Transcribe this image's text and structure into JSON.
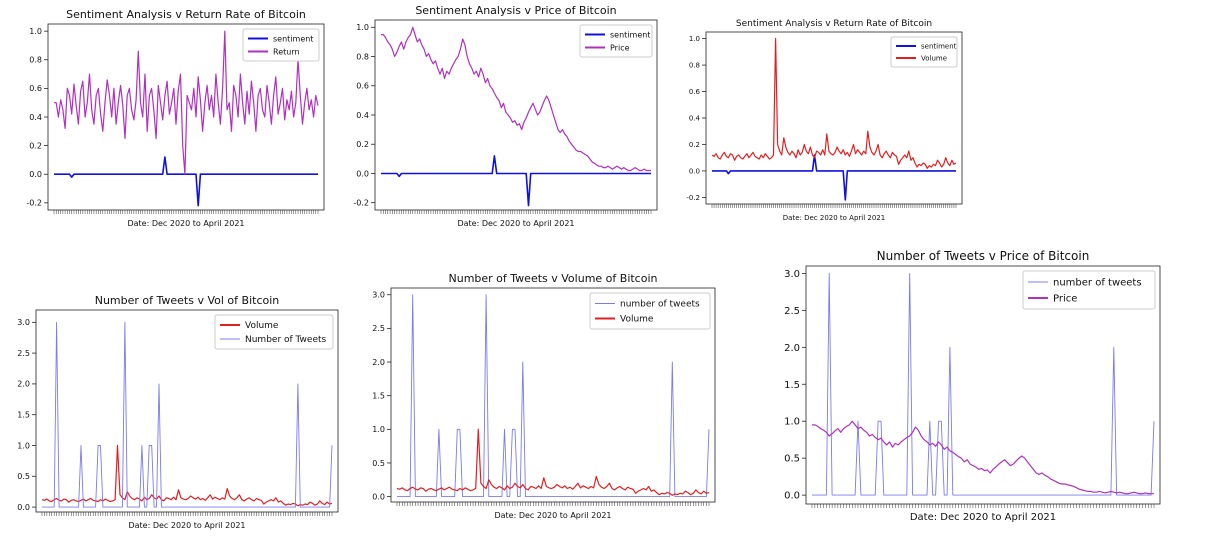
{
  "chart_data": [
    {
      "type": "line",
      "title": "Sentiment Analysis v Return Rate of Bitcoin",
      "xlabel": "Date: Dec 2020 to April 2021",
      "ylabel": "",
      "ylim": [
        -0.25,
        1.05
      ],
      "yticks": [
        "-0.2",
        "0.0",
        "0.2",
        "0.4",
        "0.6",
        "0.8",
        "1.0"
      ],
      "yvalues": [
        -0.2,
        0.0,
        0.2,
        0.4,
        0.6,
        0.8,
        1.0
      ],
      "legend": "top-right",
      "grid": false,
      "n_points": 120,
      "series": [
        {
          "name": "sentiment",
          "color": "#1010e0",
          "kind": "sentiment"
        },
        {
          "name": "Return",
          "color": "#b030c0",
          "kind": "return"
        }
      ]
    },
    {
      "type": "line",
      "title": "Sentiment Analysis v Price of Bitcoin",
      "xlabel": "Date: Dec 2020 to April 2021",
      "ylabel": "",
      "ylim": [
        -0.25,
        1.05
      ],
      "yticks": [
        "-0.2",
        "0.0",
        "0.2",
        "0.4",
        "0.6",
        "0.8",
        "1.0"
      ],
      "yvalues": [
        -0.2,
        0.0,
        0.2,
        0.4,
        0.6,
        0.8,
        1.0
      ],
      "legend": "top-right",
      "grid": false,
      "n_points": 120,
      "series": [
        {
          "name": "sentiment",
          "color": "#1010e0",
          "kind": "sentiment"
        },
        {
          "name": "Price",
          "color": "#b030c0",
          "kind": "price"
        }
      ]
    },
    {
      "type": "line",
      "title": "Sentiment Analysis v Return Rate of Bitcoin",
      "xlabel": "Date: Dec 2020 to April 2021",
      "ylabel": "",
      "ylim": [
        -0.25,
        1.05
      ],
      "yticks": [
        "-0.2",
        "0.0",
        "0.2",
        "0.4",
        "0.6",
        "0.8",
        "1.0"
      ],
      "yvalues": [
        -0.2,
        0.0,
        0.2,
        0.4,
        0.6,
        0.8,
        1.0
      ],
      "legend": "top-right",
      "grid": false,
      "n_points": 120,
      "series": [
        {
          "name": "sentiment",
          "color": "#1010e0",
          "kind": "sentiment"
        },
        {
          "name": "Volume",
          "color": "#e02020",
          "kind": "volume"
        }
      ]
    },
    {
      "type": "line",
      "title": "Number of Tweets v Vol of Bitcoin",
      "xlabel": "Date: Dec 2020 to April 2021",
      "ylabel": "",
      "ylim": [
        -0.08,
        3.2
      ],
      "yticks": [
        "0.0",
        "0.5",
        "1.0",
        "1.5",
        "2.0",
        "2.5",
        "3.0"
      ],
      "yvalues": [
        0.0,
        0.5,
        1.0,
        1.5,
        2.0,
        2.5,
        3.0
      ],
      "legend": "top-right",
      "grid": false,
      "n_points": 120,
      "series": [
        {
          "name": "Volume",
          "color": "#e02020",
          "kind": "volume"
        },
        {
          "name": "Number of Tweets",
          "color": "#7b7bf0",
          "kind": "tweets"
        }
      ]
    },
    {
      "type": "line",
      "title": "Number of Tweets v Volume of Bitcoin",
      "xlabel": "Date: Dec 2020 to April 2021",
      "ylabel": "",
      "ylim": [
        -0.08,
        3.1
      ],
      "yticks": [
        "0.0",
        "0.5",
        "1.0",
        "1.5",
        "2.0",
        "2.5",
        "3.0"
      ],
      "yvalues": [
        0.0,
        0.5,
        1.0,
        1.5,
        2.0,
        2.5,
        3.0
      ],
      "legend": "top-right",
      "grid": false,
      "n_points": 120,
      "series": [
        {
          "name": "number of tweets",
          "color": "#7b7bf0",
          "kind": "tweets"
        },
        {
          "name": "Volume",
          "color": "#e02020",
          "kind": "volume"
        }
      ]
    },
    {
      "type": "line",
      "title": "Number of Tweets v Price of Bitcoin",
      "xlabel": "Date: Dec 2020 to April 2021",
      "ylabel": "",
      "ylim": [
        -0.12,
        3.1
      ],
      "yticks": [
        "0.0",
        "0.5",
        "1.0",
        "1.5",
        "2.0",
        "2.5",
        "3.0"
      ],
      "yvalues": [
        0.0,
        0.5,
        1.0,
        1.5,
        2.0,
        2.5,
        3.0
      ],
      "legend": "top-right",
      "grid": false,
      "n_points": 120,
      "series": [
        {
          "name": "number of tweets",
          "color": "#7b7bf0",
          "kind": "tweets"
        },
        {
          "name": "Price",
          "color": "#b030c0",
          "kind": "price"
        }
      ]
    }
  ],
  "series_data": {
    "sentiment": [
      0,
      0,
      0,
      0,
      0,
      0,
      0,
      0,
      -0.02,
      0,
      0,
      0,
      0,
      0,
      0,
      0,
      0,
      0,
      0,
      0,
      0,
      0,
      0,
      0,
      0,
      0,
      0,
      0,
      0,
      0,
      0,
      0,
      0,
      0,
      0,
      0,
      0,
      0,
      0,
      0,
      0,
      0,
      0,
      0,
      0,
      0,
      0,
      0,
      0,
      0,
      0.12,
      0,
      0,
      0,
      0,
      0,
      0,
      0,
      0,
      0,
      0,
      0,
      0,
      0,
      0,
      -0.22,
      0,
      0,
      0,
      0,
      0,
      0,
      0,
      0,
      0,
      0,
      0,
      0,
      0,
      0,
      0,
      0,
      0,
      0,
      0,
      0,
      0,
      0,
      0,
      0,
      0,
      0,
      0,
      0,
      0,
      0,
      0,
      0,
      0,
      0,
      0,
      0,
      0,
      0,
      0,
      0,
      0,
      0,
      0,
      0,
      0,
      0,
      0,
      0,
      0,
      0,
      0,
      0,
      0,
      0
    ],
    "return": [
      0.5,
      0.5,
      0.4,
      0.52,
      0.45,
      0.32,
      0.6,
      0.55,
      0.42,
      0.63,
      0.48,
      0.35,
      0.58,
      0.65,
      0.4,
      0.5,
      0.7,
      0.45,
      0.35,
      0.55,
      0.6,
      0.42,
      0.3,
      0.5,
      0.66,
      0.55,
      0.4,
      0.6,
      0.35,
      0.5,
      0.62,
      0.48,
      0.25,
      0.55,
      0.6,
      0.45,
      0.38,
      0.52,
      0.86,
      0.5,
      0.4,
      0.7,
      0.3,
      0.55,
      0.6,
      0.45,
      0.25,
      0.62,
      0.5,
      0.38,
      0.55,
      0.65,
      0.42,
      0.5,
      0.6,
      0.35,
      0.58,
      0.7,
      0.2,
      0.0,
      0.55,
      0.5,
      0.45,
      0.6,
      0.4,
      0.68,
      0.52,
      0.3,
      0.5,
      0.62,
      0.45,
      0.55,
      0.4,
      0.7,
      0.5,
      0.35,
      0.6,
      1.0,
      0.45,
      0.5,
      0.3,
      0.62,
      0.55,
      0.4,
      0.7,
      0.5,
      0.35,
      0.58,
      0.42,
      0.65,
      0.5,
      0.3,
      0.55,
      0.6,
      0.45,
      0.4,
      0.62,
      0.5,
      0.35,
      0.55,
      0.68,
      0.42,
      0.5,
      0.6,
      0.38,
      0.52,
      0.45,
      0.58,
      0.4,
      0.5,
      0.8,
      0.55,
      0.35,
      0.5,
      0.6,
      0.45,
      0.52,
      0.4,
      0.55,
      0.48
    ],
    "price": [
      0.95,
      0.95,
      0.93,
      0.9,
      0.88,
      0.85,
      0.8,
      0.83,
      0.87,
      0.9,
      0.85,
      0.9,
      0.93,
      0.95,
      1.0,
      0.95,
      0.9,
      0.92,
      0.88,
      0.85,
      0.8,
      0.82,
      0.78,
      0.75,
      0.77,
      0.72,
      0.68,
      0.72,
      0.65,
      0.7,
      0.68,
      0.72,
      0.75,
      0.78,
      0.8,
      0.85,
      0.92,
      0.88,
      0.8,
      0.75,
      0.72,
      0.68,
      0.7,
      0.66,
      0.72,
      0.68,
      0.62,
      0.65,
      0.6,
      0.58,
      0.55,
      0.52,
      0.5,
      0.45,
      0.48,
      0.42,
      0.4,
      0.38,
      0.35,
      0.36,
      0.33,
      0.34,
      0.3,
      0.35,
      0.38,
      0.42,
      0.45,
      0.48,
      0.44,
      0.4,
      0.42,
      0.46,
      0.5,
      0.53,
      0.5,
      0.45,
      0.4,
      0.35,
      0.3,
      0.28,
      0.3,
      0.27,
      0.25,
      0.22,
      0.2,
      0.18,
      0.16,
      0.15,
      0.15,
      0.14,
      0.13,
      0.12,
      0.1,
      0.08,
      0.07,
      0.06,
      0.05,
      0.05,
      0.04,
      0.04,
      0.05,
      0.04,
      0.03,
      0.04,
      0.05,
      0.04,
      0.03,
      0.04,
      0.03,
      0.02,
      0.02,
      0.03,
      0.04,
      0.03,
      0.02,
      0.02,
      0.03,
      0.02,
      0.02,
      0.02
    ],
    "volume": [
      0.12,
      0.11,
      0.13,
      0.1,
      0.09,
      0.12,
      0.14,
      0.11,
      0.1,
      0.13,
      0.12,
      0.08,
      0.11,
      0.12,
      0.1,
      0.09,
      0.11,
      0.13,
      0.1,
      0.12,
      0.14,
      0.11,
      0.1,
      0.09,
      0.12,
      0.1,
      0.13,
      0.11,
      0.09,
      0.1,
      0.12,
      1.0,
      0.2,
      0.15,
      0.12,
      0.25,
      0.18,
      0.14,
      0.12,
      0.15,
      0.13,
      0.1,
      0.16,
      0.12,
      0.14,
      0.2,
      0.15,
      0.13,
      0.18,
      0.12,
      0.1,
      0.15,
      0.14,
      0.12,
      0.16,
      0.12,
      0.28,
      0.15,
      0.13,
      0.12,
      0.14,
      0.18,
      0.15,
      0.13,
      0.16,
      0.12,
      0.14,
      0.11,
      0.15,
      0.2,
      0.13,
      0.16,
      0.14,
      0.12,
      0.15,
      0.13,
      0.3,
      0.18,
      0.14,
      0.12,
      0.15,
      0.2,
      0.12,
      0.1,
      0.13,
      0.15,
      0.12,
      0.1,
      0.14,
      0.12,
      0.11,
      0.05,
      0.08,
      0.1,
      0.12,
      0.1,
      0.15,
      0.08,
      0.1,
      0.06,
      0.03,
      0.05,
      0.04,
      0.06,
      0.05,
      0.02,
      0.04,
      0.03,
      0.05,
      0.04,
      0.08,
      0.06,
      0.03,
      0.05,
      0.1,
      0.06,
      0.04,
      0.08,
      0.05,
      0.06
    ],
    "tweets": [
      0,
      0,
      0,
      0,
      0,
      0,
      3,
      0,
      0,
      0,
      0,
      0,
      0,
      0,
      0,
      0,
      1,
      0,
      0,
      0,
      0,
      0,
      0,
      1,
      1,
      0,
      0,
      0,
      0,
      0,
      0,
      0,
      0,
      0,
      3,
      0,
      0,
      0,
      0,
      0,
      0,
      1,
      0,
      0,
      1,
      1,
      0,
      0,
      2,
      0,
      0,
      0,
      0,
      0,
      0,
      0,
      0,
      0,
      0,
      0,
      0,
      0,
      0,
      0,
      0,
      0,
      0,
      0,
      0,
      0,
      0,
      0,
      0,
      0,
      0,
      0,
      0,
      0,
      0,
      0,
      0,
      0,
      0,
      0,
      0,
      0,
      0,
      0,
      0,
      0,
      0,
      0,
      0,
      0,
      0,
      0,
      0,
      0,
      0,
      0,
      0,
      0,
      0,
      0,
      0,
      2,
      0,
      0,
      0,
      0,
      0,
      0,
      0,
      0,
      0,
      0,
      0,
      0,
      0,
      1
    ]
  }
}
